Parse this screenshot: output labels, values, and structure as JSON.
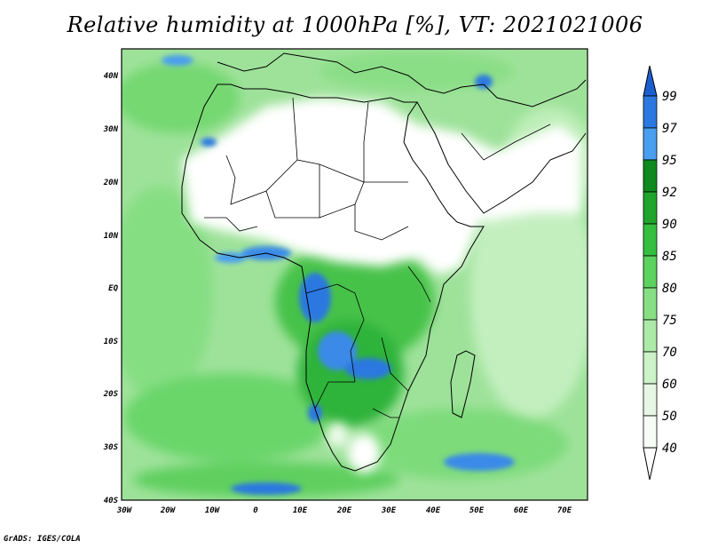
{
  "title": "Relative humidity at 1000hPa [%], VT: 2021021006",
  "map": {
    "lat_labels": [
      "40N",
      "30N",
      "20N",
      "10N",
      "EQ",
      "10S",
      "20S",
      "30S",
      "40S"
    ],
    "lon_labels": [
      "30W",
      "20W",
      "10W",
      "0",
      "10E",
      "20E",
      "30E",
      "40E",
      "50E",
      "60E",
      "70E"
    ]
  },
  "colorbar": {
    "labels": [
      "99",
      "97",
      "95",
      "92",
      "90",
      "85",
      "80",
      "75",
      "70",
      "60",
      "50",
      "40"
    ],
    "colors": [
      "#1a5fd0",
      "#2b78e0",
      "#4a9ef0",
      "#0f8a1e",
      "#1fa52c",
      "#35bf3f",
      "#5bd35e",
      "#86e083",
      "#aceaa8",
      "#ccf2c8",
      "#e6f8e3",
      "#f7fdf6"
    ]
  },
  "credit": "GrADS: IGES/COLA"
}
